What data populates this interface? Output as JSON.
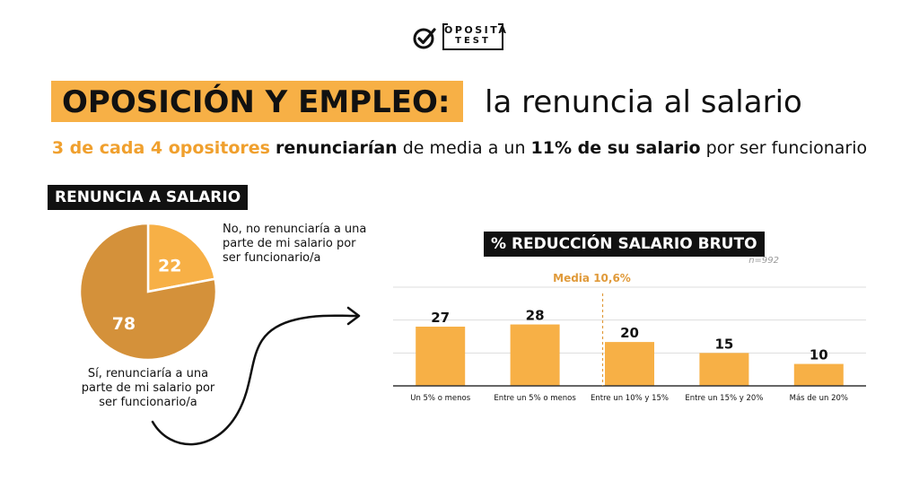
{
  "logo": {
    "line1": "OPOSITA",
    "line2": "TEST"
  },
  "header": {
    "title_highlight": "OPOSICIÓN Y EMPLEO:",
    "title_rest": "la renuncia al salario"
  },
  "subtitle": {
    "part1": "3 de cada 4 opositores",
    "part2": " ",
    "part3": "renunciarían",
    "part4": " de media a un ",
    "part5": "11% de su salario",
    "part6": " por ser funcionario"
  },
  "colors": {
    "accent": "#f7b046",
    "pie_dark": "#d4913a",
    "pie_light": "#f7b046",
    "dashed": "#e09a3a",
    "text": "#111111"
  },
  "chart_data": [
    {
      "type": "pie",
      "title": "RENUNCIA A SALARIO",
      "slices": [
        {
          "label": "No, no renunciaría a una parte de mi salario por ser funcionario/a",
          "value": 22
        },
        {
          "label": "Sí, renunciaría a una parte de mi salario por ser funcionario/a",
          "value": 78
        }
      ]
    },
    {
      "type": "bar",
      "title": "% REDUCCIÓN SALARIO BRUTO",
      "note": "n=992",
      "categories": [
        "Un 5% o menos",
        "Entre un 5% o menos",
        "Entre un 10% y 15%",
        "Entre un 15% y 20%",
        "Más de un 20%"
      ],
      "values": [
        27,
        28,
        20,
        15,
        10
      ],
      "annotation": "Media 10,6%",
      "ylim": [
        0,
        45
      ],
      "grid": true
    }
  ]
}
